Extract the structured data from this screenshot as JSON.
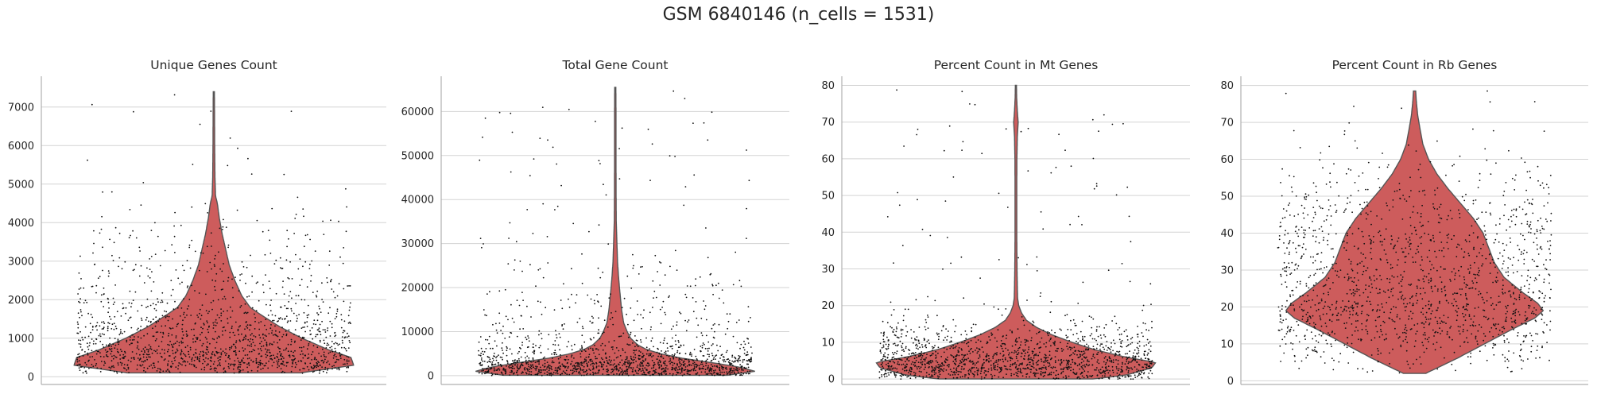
{
  "title": "GSM 6840146 (n_cells = 1531)",
  "colors": {
    "violin": "#cd5c5c",
    "violin_edge": "#555555",
    "points": "#111111",
    "grid": "#d3d3d3"
  },
  "chart_data": [
    {
      "type": "violin",
      "title": "Unique Genes Count",
      "xlabel": "",
      "ylabel": "",
      "ylim": [
        -200,
        7800
      ],
      "yticks": [
        0,
        1000,
        2000,
        3000,
        4000,
        5000,
        6000,
        7000
      ],
      "grid": true,
      "n_points": 1531,
      "range": [
        100,
        7400
      ],
      "density": [
        [
          100,
          0.62
        ],
        [
          300,
          1.0
        ],
        [
          500,
          0.98
        ],
        [
          700,
          0.82
        ],
        [
          1000,
          0.63
        ],
        [
          1300,
          0.47
        ],
        [
          1600,
          0.34
        ],
        [
          1800,
          0.26
        ],
        [
          2100,
          0.2
        ],
        [
          2500,
          0.15
        ],
        [
          2900,
          0.11
        ],
        [
          3300,
          0.085
        ],
        [
          3700,
          0.06
        ],
        [
          4100,
          0.04
        ],
        [
          4500,
          0.025
        ],
        [
          4700,
          0.012
        ],
        [
          5200,
          0.008
        ],
        [
          6000,
          0.006
        ],
        [
          6800,
          0.005
        ],
        [
          7400,
          0.004
        ]
      ]
    },
    {
      "type": "violin",
      "title": "Total Gene Count",
      "xlabel": "",
      "ylabel": "",
      "ylim": [
        -2000,
        68000
      ],
      "yticks": [
        0,
        10000,
        20000,
        30000,
        40000,
        50000,
        60000
      ],
      "grid": true,
      "n_points": 1531,
      "range": [
        100,
        65500
      ],
      "density": [
        [
          100,
          0.8
        ],
        [
          1000,
          1.0
        ],
        [
          2000,
          0.88
        ],
        [
          3000,
          0.68
        ],
        [
          4000,
          0.47
        ],
        [
          5000,
          0.32
        ],
        [
          6000,
          0.22
        ],
        [
          7000,
          0.16
        ],
        [
          8500,
          0.11
        ],
        [
          10000,
          0.085
        ],
        [
          12000,
          0.06
        ],
        [
          15000,
          0.045
        ],
        [
          18000,
          0.036
        ],
        [
          20000,
          0.03
        ],
        [
          23000,
          0.022
        ],
        [
          26000,
          0.016
        ],
        [
          30000,
          0.012
        ],
        [
          35000,
          0.007
        ],
        [
          40000,
          0.006
        ],
        [
          50000,
          0.005
        ],
        [
          60000,
          0.005
        ],
        [
          65500,
          0.004
        ]
      ]
    },
    {
      "type": "violin",
      "title": "Percent Count in Mt Genes",
      "xlabel": "",
      "ylabel": "",
      "ylim": [
        -1.5,
        82.5
      ],
      "yticks": [
        0,
        10,
        20,
        30,
        40,
        50,
        60,
        70,
        80
      ],
      "grid": true,
      "n_points": 1531,
      "range": [
        0,
        80
      ],
      "density": [
        [
          0,
          0.55
        ],
        [
          1,
          0.78
        ],
        [
          3,
          0.97
        ],
        [
          4.5,
          1.0
        ],
        [
          6,
          0.78
        ],
        [
          8,
          0.56
        ],
        [
          10,
          0.4
        ],
        [
          12,
          0.26
        ],
        [
          14,
          0.15
        ],
        [
          16,
          0.075
        ],
        [
          18,
          0.04
        ],
        [
          20,
          0.02
        ],
        [
          22,
          0.012
        ],
        [
          25,
          0.01
        ],
        [
          30,
          0.008
        ],
        [
          40,
          0.006
        ],
        [
          50,
          0.006
        ],
        [
          60,
          0.007
        ],
        [
          66,
          0.01
        ],
        [
          70,
          0.016
        ],
        [
          73,
          0.01
        ],
        [
          77,
          0.005
        ],
        [
          80,
          0.004
        ]
      ]
    },
    {
      "type": "violin",
      "title": "Percent Count in Rb Genes",
      "xlabel": "",
      "ylabel": "",
      "ylim": [
        -1,
        82.5
      ],
      "yticks": [
        0,
        10,
        20,
        30,
        40,
        50,
        60,
        70,
        80
      ],
      "grid": true,
      "n_points": 1531,
      "range": [
        2,
        78.5
      ],
      "density": [
        [
          2,
          0.08
        ],
        [
          6,
          0.3
        ],
        [
          10,
          0.5
        ],
        [
          14,
          0.7
        ],
        [
          17,
          0.86
        ],
        [
          19,
          0.92
        ],
        [
          21,
          0.88
        ],
        [
          24,
          0.77
        ],
        [
          28,
          0.64
        ],
        [
          32,
          0.57
        ],
        [
          36,
          0.53
        ],
        [
          40,
          0.49
        ],
        [
          44,
          0.42
        ],
        [
          48,
          0.33
        ],
        [
          52,
          0.24
        ],
        [
          56,
          0.16
        ],
        [
          60,
          0.1
        ],
        [
          64,
          0.06
        ],
        [
          68,
          0.04
        ],
        [
          72,
          0.022
        ],
        [
          76,
          0.012
        ],
        [
          78.5,
          0.008
        ]
      ]
    }
  ]
}
